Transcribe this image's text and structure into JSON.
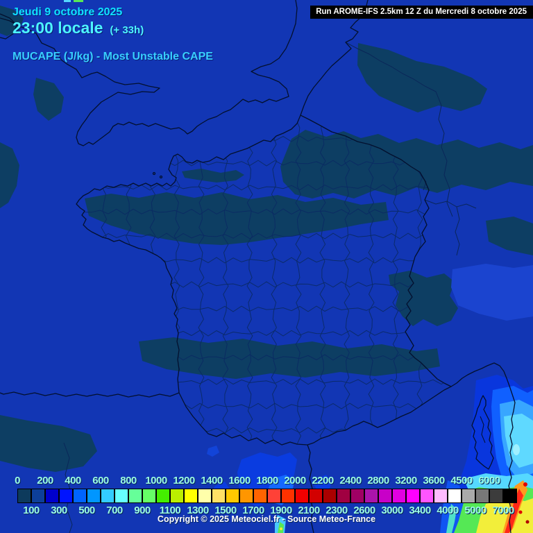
{
  "header": {
    "date": "Jeudi 9 octobre 2025",
    "time": "23:00 locale",
    "forecast_offset": "(+ 33h)",
    "subtitle": "MUCAPE (J/kg) - Most Unstable CAPE",
    "run_label": "Run AROME-IFS 2.5km 12 Z du Mercredi 8 octobre 2025"
  },
  "footer": {
    "copyright": "Copyright © 2025 Meteociel.fr - Source Meteo-France"
  },
  "legend": {
    "unit": "J/kg",
    "boundaries": [
      0,
      100,
      200,
      300,
      400,
      500,
      600,
      700,
      800,
      900,
      1000,
      1100,
      1200,
      1300,
      1400,
      1500,
      1600,
      1700,
      1800,
      1900,
      2000,
      2100,
      2200,
      2300,
      2400,
      2600,
      2800,
      3000,
      3200,
      3400,
      3600,
      4000,
      4500,
      5000,
      6000,
      7000
    ],
    "colors": [
      "#0d3a5c",
      "#0d3f99",
      "#0000cd",
      "#0014ff",
      "#0064ff",
      "#0096ff",
      "#33ccff",
      "#66ffff",
      "#66ff99",
      "#66ff66",
      "#44ee00",
      "#bbee00",
      "#ffff00",
      "#ffffaa",
      "#ffe066",
      "#ffc800",
      "#ff9600",
      "#ff6400",
      "#ff4137",
      "#ff3200",
      "#f00000",
      "#d20000",
      "#aa0000",
      "#a00041",
      "#a00064",
      "#aa14aa",
      "#c800c8",
      "#e100e1",
      "#ff00ff",
      "#ff55ff",
      "#ffbbff",
      "#ffffff",
      "#aaaaaa",
      "#787878",
      "#3c3c3c",
      "#000000"
    ]
  },
  "map_colors": {
    "sea_base": "#1236b4",
    "low_cape_patch": "#0d3e63",
    "coastline": "#03102e",
    "department_line": "#0b2a63"
  }
}
